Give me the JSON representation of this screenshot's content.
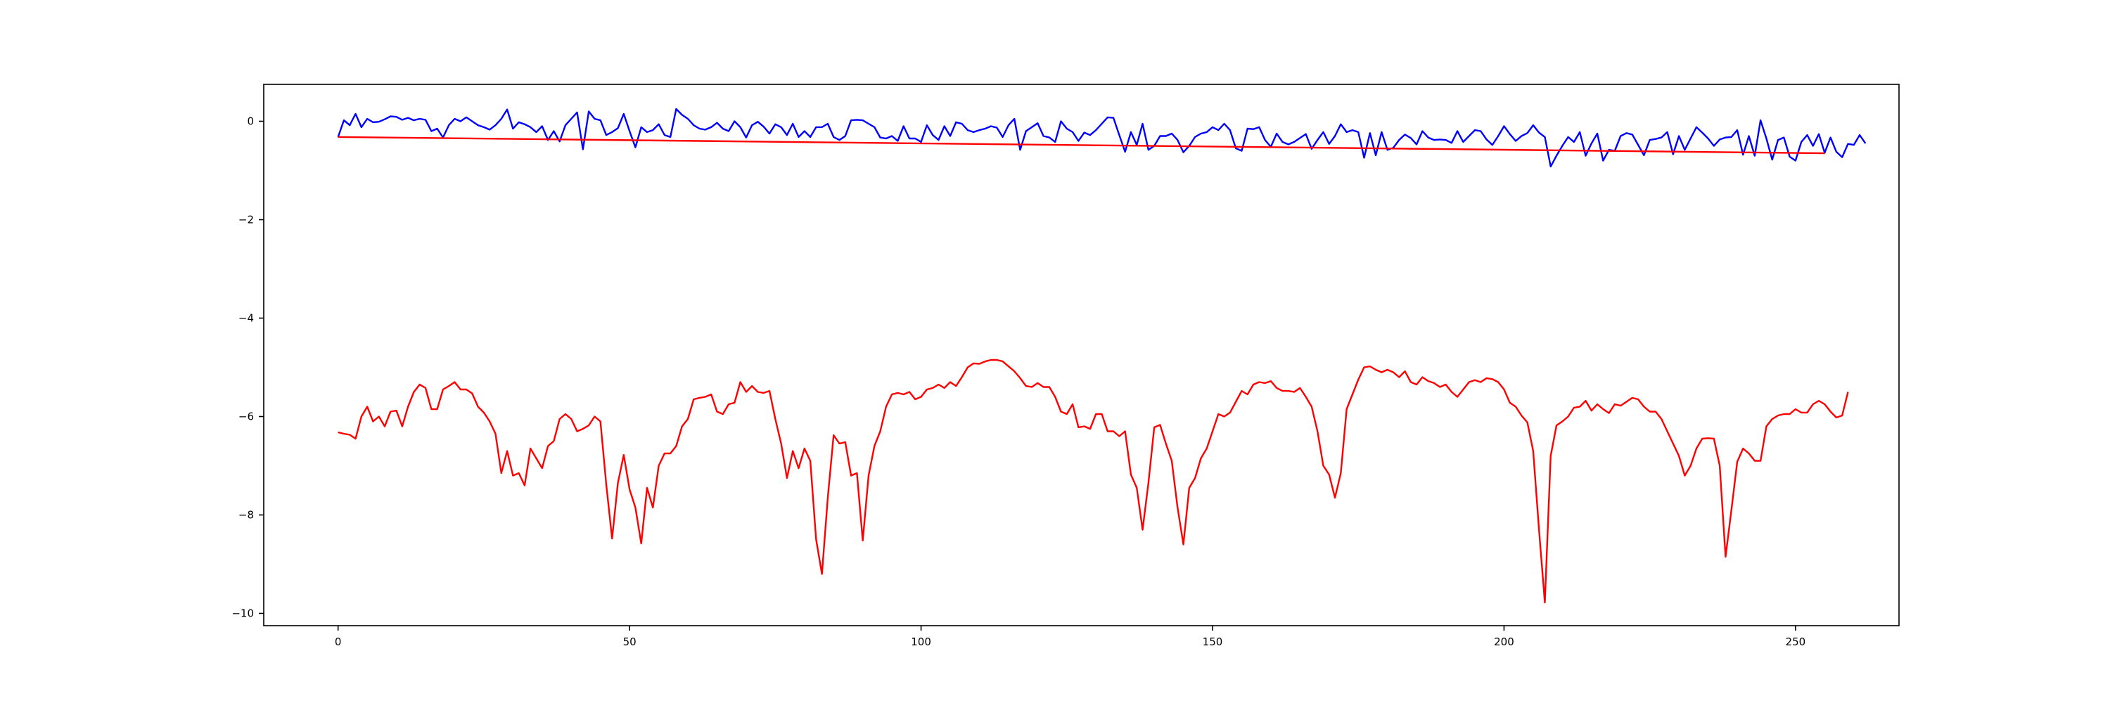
{
  "chart_data": {
    "type": "line",
    "title": "",
    "xlabel": "",
    "ylabel": "",
    "xlim": [
      -12.75,
      267.75
    ],
    "ylim": [
      -10.25,
      0.75
    ],
    "xticks": [
      0,
      50,
      100,
      150,
      200,
      250
    ],
    "yticks": [
      0,
      -2,
      -4,
      -6,
      -8,
      -10
    ],
    "xtick_labels": [
      "0",
      "50",
      "100",
      "150",
      "200",
      "250"
    ],
    "ytick_labels": [
      "0",
      "−2",
      "−4",
      "−6",
      "−8",
      "−10"
    ],
    "grid": false,
    "legend": "none",
    "x": {
      "start": 0,
      "end": 255,
      "step": 1
    },
    "series": [
      {
        "color": "#0000ff",
        "values": [
          -0.32,
          0.02,
          -0.08,
          0.15,
          -0.12,
          0.05,
          -0.02,
          -0.01,
          0.04,
          0.1,
          0.09,
          0.03,
          0.07,
          0.02,
          0.05,
          0.03,
          -0.2,
          -0.15,
          -0.33,
          -0.08,
          0.05,
          0.0,
          0.08,
          0.0,
          -0.08,
          -0.12,
          -0.17,
          -0.08,
          0.05,
          0.24,
          -0.15,
          -0.02,
          -0.06,
          -0.12,
          -0.22,
          -0.1,
          -0.38,
          -0.2,
          -0.41,
          -0.08,
          0.05,
          0.18,
          -0.57,
          0.2,
          0.05,
          0.02,
          -0.28,
          -0.22,
          -0.14,
          0.15,
          -0.2,
          -0.53,
          -0.12,
          -0.22,
          -0.18,
          -0.06,
          -0.28,
          -0.32,
          0.25,
          0.13,
          0.05,
          -0.08,
          -0.15,
          -0.17,
          -0.12,
          -0.03,
          -0.15,
          -0.2,
          0.0,
          -0.12,
          -0.33,
          -0.08,
          -0.01,
          -0.11,
          -0.25,
          -0.06,
          -0.12,
          -0.28,
          -0.05,
          -0.32,
          -0.2,
          -0.32,
          -0.12,
          -0.12,
          -0.05,
          -0.32,
          -0.38,
          -0.3,
          0.02,
          0.03,
          0.02,
          -0.05,
          -0.12,
          -0.33,
          -0.35,
          -0.3,
          -0.4,
          -0.1,
          -0.35,
          -0.35,
          -0.42,
          -0.08,
          -0.28,
          -0.38,
          -0.1,
          -0.3,
          -0.02,
          -0.05,
          -0.18,
          -0.22,
          -0.18,
          -0.15,
          -0.1,
          -0.13,
          -0.32,
          -0.08,
          0.05,
          -0.58,
          -0.2,
          -0.12,
          -0.04,
          -0.3,
          -0.33,
          -0.42,
          0.0,
          -0.15,
          -0.22,
          -0.4,
          -0.23,
          -0.28,
          -0.18,
          -0.05,
          0.08,
          0.07,
          -0.28,
          -0.62,
          -0.22,
          -0.48,
          -0.05,
          -0.58,
          -0.5,
          -0.3,
          -0.3,
          -0.25,
          -0.38,
          -0.63,
          -0.5,
          -0.32,
          -0.25,
          -0.22,
          -0.12,
          -0.18,
          -0.05,
          -0.18,
          -0.55,
          -0.6,
          -0.15,
          -0.16,
          -0.12,
          -0.38,
          -0.52,
          -0.25,
          -0.42,
          -0.47,
          -0.42,
          -0.34,
          -0.26,
          -0.56,
          -0.38,
          -0.22,
          -0.46,
          -0.3,
          -0.06,
          -0.22,
          -0.18,
          -0.22,
          -0.74,
          -0.24,
          -0.69,
          -0.22,
          -0.58,
          -0.54,
          -0.38,
          -0.27,
          -0.34,
          -0.47,
          -0.2,
          -0.33,
          -0.38,
          -0.37,
          -0.38,
          -0.44,
          -0.2,
          -0.42,
          -0.3,
          -0.18,
          -0.2,
          -0.37,
          -0.48,
          -0.3,
          -0.1,
          -0.26,
          -0.4,
          -0.3,
          -0.24,
          -0.08,
          -0.23,
          -0.32,
          -0.92,
          -0.7,
          -0.5,
          -0.32,
          -0.42,
          -0.22,
          -0.7,
          -0.45,
          -0.25,
          -0.8,
          -0.58,
          -0.6,
          -0.3,
          -0.24,
          -0.27,
          -0.48,
          -0.69,
          -0.38,
          -0.36,
          -0.33,
          -0.22,
          -0.67,
          -0.3,
          -0.58,
          -0.35,
          -0.12,
          -0.23,
          -0.35,
          -0.5,
          -0.37,
          -0.33,
          -0.32,
          -0.18,
          -0.68,
          -0.3,
          -0.7,
          0.02,
          -0.35,
          -0.78,
          -0.38,
          -0.33,
          -0.72,
          -0.8,
          -0.42,
          -0.28,
          -0.5,
          -0.26,
          -0.64,
          -0.33,
          -0.62,
          -0.73,
          -0.46,
          -0.48,
          -0.28,
          -0.45
        ]
      },
      {
        "color": "#ff0000",
        "values": [
          -6.32,
          -6.35,
          -6.37,
          -6.45,
          -6.0,
          -5.8,
          -6.1,
          -6.0,
          -6.2,
          -5.9,
          -5.88,
          -6.2,
          -5.8,
          -5.5,
          -5.35,
          -5.42,
          -5.85,
          -5.85,
          -5.45,
          -5.38,
          -5.3,
          -5.45,
          -5.45,
          -5.53,
          -5.8,
          -5.92,
          -6.1,
          -6.35,
          -7.15,
          -6.7,
          -7.2,
          -7.15,
          -7.4,
          -6.65,
          -6.85,
          -7.05,
          -6.6,
          -6.5,
          -6.05,
          -5.95,
          -6.05,
          -6.3,
          -6.25,
          -6.18,
          -6.0,
          -6.1,
          -7.38,
          -8.48,
          -7.35,
          -6.78,
          -7.48,
          -7.85,
          -8.58,
          -7.45,
          -7.85,
          -7.0,
          -6.75,
          -6.75,
          -6.6,
          -6.2,
          -6.05,
          -5.65,
          -5.62,
          -5.6,
          -5.55,
          -5.9,
          -5.95,
          -5.75,
          -5.72,
          -5.3,
          -5.5,
          -5.38,
          -5.5,
          -5.52,
          -5.48,
          -6.05,
          -6.55,
          -7.25,
          -6.7,
          -7.05,
          -6.65,
          -6.9,
          -8.5,
          -9.2,
          -7.65,
          -6.38,
          -6.55,
          -6.52,
          -7.2,
          -7.15,
          -8.52,
          -7.2,
          -6.6,
          -6.3,
          -5.8,
          -5.55,
          -5.52,
          -5.55,
          -5.5,
          -5.65,
          -5.6,
          -5.45,
          -5.42,
          -5.35,
          -5.42,
          -5.3,
          -5.38,
          -5.2,
          -5.0,
          -4.92,
          -4.93,
          -4.88,
          -4.85,
          -4.85,
          -4.88,
          -4.98,
          -5.08,
          -5.22,
          -5.38,
          -5.4,
          -5.32,
          -5.4,
          -5.4,
          -5.6,
          -5.9,
          -5.95,
          -5.75,
          -6.22,
          -6.2,
          -6.25,
          -5.95,
          -5.95,
          -6.3,
          -6.3,
          -6.4,
          -6.3,
          -7.18,
          -7.45,
          -8.3,
          -7.35,
          -6.22,
          -6.17,
          -6.55,
          -6.9,
          -7.85,
          -8.6,
          -7.45,
          -7.25,
          -6.85,
          -6.65,
          -6.3,
          -5.95,
          -6.0,
          -5.92,
          -5.7,
          -5.48,
          -5.55,
          -5.35,
          -5.3,
          -5.32,
          -5.28,
          -5.42,
          -5.48,
          -5.48,
          -5.5,
          -5.42,
          -5.6,
          -5.8,
          -6.3,
          -7.0,
          -7.18,
          -7.65,
          -7.15,
          -5.85,
          -5.55,
          -5.25,
          -5.0,
          -4.98,
          -5.05,
          -5.1,
          -5.05,
          -5.1,
          -5.2,
          -5.08,
          -5.3,
          -5.35,
          -5.2,
          -5.28,
          -5.32,
          -5.4,
          -5.35,
          -5.5,
          -5.6,
          -5.45,
          -5.3,
          -5.26,
          -5.3,
          -5.22,
          -5.24,
          -5.3,
          -5.45,
          -5.72,
          -5.8,
          -5.98,
          -6.12,
          -6.7,
          -8.3,
          -9.78,
          -6.8,
          -6.18,
          -6.1,
          -6.0,
          -5.82,
          -5.8,
          -5.68,
          -5.88,
          -5.75,
          -5.85,
          -5.93,
          -5.75,
          -5.78,
          -5.7,
          -5.62,
          -5.65,
          -5.8,
          -5.9,
          -5.9,
          -6.05,
          -6.3,
          -6.55,
          -6.8,
          -7.2,
          -7.0,
          -6.65,
          -6.45,
          -6.44,
          -6.45,
          -7.0,
          -8.85,
          -7.9,
          -6.92,
          -6.65,
          -6.75,
          -6.9,
          -6.9,
          -6.2,
          -6.05,
          -5.98,
          -5.95,
          -5.95,
          -5.85,
          -5.92,
          -5.92,
          -5.75,
          -5.68,
          -5.75,
          -5.9,
          -6.02,
          -5.98,
          -5.5
        ]
      },
      {
        "color": "#ff0000",
        "values": [
          -0.32,
          -0.65
        ]
      }
    ]
  }
}
